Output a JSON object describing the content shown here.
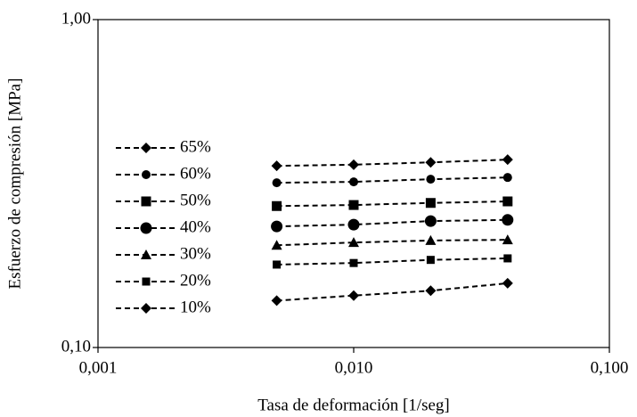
{
  "chart_data": {
    "type": "line",
    "x_label": "Tasa de deformación [1/seg]",
    "y_label": "Esfuerzo de compresión [MPa]",
    "x": [
      0.005,
      0.01,
      0.02,
      0.04
    ],
    "xlim": [
      0.001,
      0.1
    ],
    "ylim": [
      0.1,
      1.0
    ],
    "xscale": "log",
    "yscale": "log",
    "xticks": [
      {
        "value": 0.001,
        "label": "0,001"
      },
      {
        "value": 0.01,
        "label": "0,010"
      },
      {
        "value": 0.1,
        "label": "0,100"
      }
    ],
    "yticks": [
      {
        "value": 0.1,
        "label": "0,10"
      },
      {
        "value": 1.0,
        "label": "1,00"
      }
    ],
    "legend": "left",
    "series": [
      {
        "name": "65%",
        "color": "#000000",
        "marker": "diamond",
        "values": [
          0.358,
          0.361,
          0.367,
          0.374
        ]
      },
      {
        "name": "60%",
        "color": "#000000",
        "marker": "circle",
        "values": [
          0.318,
          0.32,
          0.326,
          0.33
        ]
      },
      {
        "name": "50%",
        "color": "#000000",
        "marker": "square",
        "values": [
          0.27,
          0.272,
          0.276,
          0.279
        ]
      },
      {
        "name": "40%",
        "color": "#000000",
        "marker": "big-circle",
        "values": [
          0.234,
          0.237,
          0.243,
          0.245
        ]
      },
      {
        "name": "30%",
        "color": "#000000",
        "marker": "triangle",
        "values": [
          0.205,
          0.209,
          0.212,
          0.213
        ]
      },
      {
        "name": "20%",
        "color": "#000000",
        "marker": "small-square",
        "values": [
          0.179,
          0.181,
          0.185,
          0.187
        ]
      },
      {
        "name": "10%",
        "color": "#000000",
        "marker": "diamond",
        "values": [
          0.139,
          0.144,
          0.149,
          0.157
        ]
      }
    ]
  }
}
